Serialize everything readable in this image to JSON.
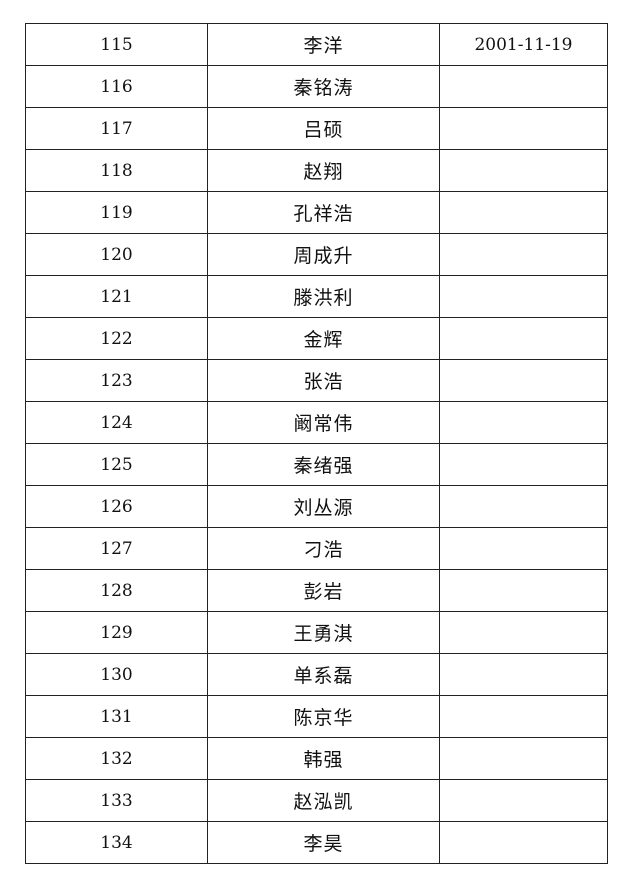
{
  "rows": [
    {
      "no": "115",
      "name": "李洋",
      "date": "2001-11-19"
    },
    {
      "no": "116",
      "name": "秦铭涛",
      "date": ""
    },
    {
      "no": "117",
      "name": "吕硕",
      "date": ""
    },
    {
      "no": "118",
      "name": "赵翔",
      "date": ""
    },
    {
      "no": "119",
      "name": "孔祥浩",
      "date": ""
    },
    {
      "no": "120",
      "name": "周成升",
      "date": ""
    },
    {
      "no": "121",
      "name": "滕洪利",
      "date": ""
    },
    {
      "no": "122",
      "name": "金辉",
      "date": ""
    },
    {
      "no": "123",
      "name": "张浩",
      "date": ""
    },
    {
      "no": "124",
      "name": "阚常伟",
      "date": ""
    },
    {
      "no": "125",
      "name": "秦绪强",
      "date": ""
    },
    {
      "no": "126",
      "name": "刘丛源",
      "date": ""
    },
    {
      "no": "127",
      "name": "刁浩",
      "date": ""
    },
    {
      "no": "128",
      "name": "彭岩",
      "date": ""
    },
    {
      "no": "129",
      "name": "王勇淇",
      "date": ""
    },
    {
      "no": "130",
      "name": "单系磊",
      "date": ""
    },
    {
      "no": "131",
      "name": "陈京华",
      "date": ""
    },
    {
      "no": "132",
      "name": "韩强",
      "date": ""
    },
    {
      "no": "133",
      "name": "赵泓凯",
      "date": ""
    },
    {
      "no": "134",
      "name": "李昊",
      "date": ""
    }
  ]
}
